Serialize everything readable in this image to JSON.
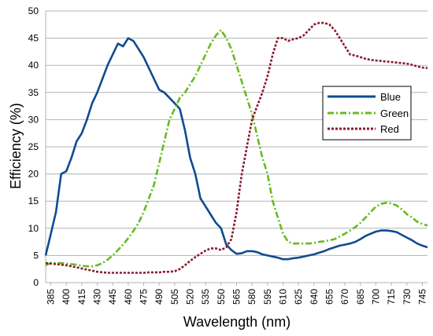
{
  "chart_data": {
    "type": "line",
    "title": "",
    "xlabel": "Wavelength (nm)",
    "ylabel": "Efficiency (%)",
    "xlim": [
      380,
      750
    ],
    "ylim": [
      0,
      50
    ],
    "x_ticks": [
      "385",
      "400",
      "415",
      "430",
      "445",
      "460",
      "475",
      "490",
      "505",
      "520",
      "535",
      "550",
      "565",
      "580",
      "595",
      "610",
      "625",
      "640",
      "655",
      "670",
      "685",
      "700",
      "715",
      "730",
      "745"
    ],
    "y_ticks": [
      "0",
      "5",
      "10",
      "15",
      "20",
      "25",
      "30",
      "35",
      "40",
      "45",
      "50"
    ],
    "grid": "horizontal",
    "legend_position": "right",
    "series": [
      {
        "name": "Blue",
        "color": "#0f4c8f",
        "style": "solid",
        "points": [
          [
            380,
            5
          ],
          [
            385,
            9
          ],
          [
            390,
            13
          ],
          [
            395,
            20
          ],
          [
            400,
            20.5
          ],
          [
            405,
            23
          ],
          [
            410,
            26
          ],
          [
            415,
            27.5
          ],
          [
            420,
            30
          ],
          [
            425,
            33
          ],
          [
            430,
            35
          ],
          [
            435,
            37.5
          ],
          [
            440,
            40
          ],
          [
            445,
            42
          ],
          [
            450,
            44
          ],
          [
            455,
            43.5
          ],
          [
            460,
            45
          ],
          [
            465,
            44.5
          ],
          [
            470,
            43
          ],
          [
            475,
            41.5
          ],
          [
            480,
            39.5
          ],
          [
            485,
            37.5
          ],
          [
            490,
            35.5
          ],
          [
            495,
            35
          ],
          [
            500,
            34
          ],
          [
            505,
            33
          ],
          [
            510,
            32
          ],
          [
            515,
            28
          ],
          [
            520,
            23
          ],
          [
            525,
            20
          ],
          [
            530,
            15.5
          ],
          [
            535,
            14
          ],
          [
            540,
            12.5
          ],
          [
            545,
            11
          ],
          [
            550,
            10
          ],
          [
            555,
            7
          ],
          [
            560,
            6
          ],
          [
            565,
            5.3
          ],
          [
            570,
            5.4
          ],
          [
            575,
            5.8
          ],
          [
            580,
            5.8
          ],
          [
            585,
            5.6
          ],
          [
            590,
            5.2
          ],
          [
            595,
            5
          ],
          [
            600,
            4.8
          ],
          [
            605,
            4.6
          ],
          [
            610,
            4.3
          ],
          [
            615,
            4.3
          ],
          [
            620,
            4.5
          ],
          [
            625,
            4.6
          ],
          [
            630,
            4.8
          ],
          [
            635,
            5
          ],
          [
            640,
            5.2
          ],
          [
            645,
            5.5
          ],
          [
            650,
            5.8
          ],
          [
            655,
            6.2
          ],
          [
            660,
            6.5
          ],
          [
            665,
            6.8
          ],
          [
            670,
            7
          ],
          [
            675,
            7.2
          ],
          [
            680,
            7.5
          ],
          [
            685,
            8
          ],
          [
            690,
            8.6
          ],
          [
            695,
            9
          ],
          [
            700,
            9.4
          ],
          [
            705,
            9.6
          ],
          [
            710,
            9.6
          ],
          [
            715,
            9.5
          ],
          [
            720,
            9.3
          ],
          [
            725,
            8.8
          ],
          [
            730,
            8.3
          ],
          [
            735,
            7.8
          ],
          [
            740,
            7.2
          ],
          [
            745,
            6.8
          ],
          [
            750,
            6.5
          ]
        ]
      },
      {
        "name": "Green",
        "color": "#66bb22",
        "style": "dashdot",
        "points": [
          [
            380,
            3.2
          ],
          [
            385,
            3.6
          ],
          [
            390,
            3.6
          ],
          [
            395,
            3.6
          ],
          [
            400,
            3.5
          ],
          [
            405,
            3.4
          ],
          [
            410,
            3.3
          ],
          [
            415,
            3.1
          ],
          [
            420,
            3
          ],
          [
            425,
            3
          ],
          [
            430,
            3.2
          ],
          [
            435,
            3.6
          ],
          [
            440,
            4.2
          ],
          [
            445,
            5
          ],
          [
            450,
            6
          ],
          [
            455,
            7
          ],
          [
            460,
            8.2
          ],
          [
            465,
            9.5
          ],
          [
            470,
            11
          ],
          [
            475,
            13
          ],
          [
            480,
            15.5
          ],
          [
            485,
            18
          ],
          [
            490,
            22
          ],
          [
            495,
            26
          ],
          [
            500,
            30
          ],
          [
            505,
            32
          ],
          [
            510,
            34
          ],
          [
            515,
            35
          ],
          [
            520,
            36.5
          ],
          [
            525,
            38
          ],
          [
            530,
            40
          ],
          [
            535,
            42
          ],
          [
            540,
            44
          ],
          [
            545,
            45.5
          ],
          [
            550,
            46.5
          ],
          [
            555,
            45
          ],
          [
            560,
            43
          ],
          [
            565,
            40
          ],
          [
            570,
            37
          ],
          [
            575,
            34
          ],
          [
            580,
            31
          ],
          [
            585,
            27
          ],
          [
            590,
            23
          ],
          [
            595,
            20
          ],
          [
            600,
            15
          ],
          [
            605,
            12
          ],
          [
            610,
            9
          ],
          [
            615,
            7.5
          ],
          [
            620,
            7.2
          ],
          [
            625,
            7.2
          ],
          [
            630,
            7.2
          ],
          [
            635,
            7.2
          ],
          [
            640,
            7.3
          ],
          [
            645,
            7.5
          ],
          [
            650,
            7.6
          ],
          [
            655,
            7.8
          ],
          [
            660,
            8
          ],
          [
            665,
            8.5
          ],
          [
            670,
            9
          ],
          [
            675,
            9.6
          ],
          [
            680,
            10.2
          ],
          [
            685,
            11
          ],
          [
            690,
            12
          ],
          [
            695,
            13
          ],
          [
            700,
            14
          ],
          [
            705,
            14.5
          ],
          [
            710,
            14.7
          ],
          [
            715,
            14.6
          ],
          [
            720,
            14.2
          ],
          [
            725,
            13.5
          ],
          [
            730,
            12.6
          ],
          [
            735,
            12
          ],
          [
            740,
            11.2
          ],
          [
            745,
            10.8
          ],
          [
            750,
            10.5
          ]
        ]
      },
      {
        "name": "Red",
        "color": "#8b1a2e",
        "style": "dotted",
        "points": [
          [
            380,
            3.6
          ],
          [
            385,
            3.5
          ],
          [
            390,
            3.4
          ],
          [
            395,
            3.3
          ],
          [
            400,
            3.2
          ],
          [
            405,
            3
          ],
          [
            410,
            2.8
          ],
          [
            415,
            2.6
          ],
          [
            420,
            2.4
          ],
          [
            425,
            2.2
          ],
          [
            430,
            2
          ],
          [
            435,
            1.9
          ],
          [
            440,
            1.8
          ],
          [
            445,
            1.8
          ],
          [
            450,
            1.8
          ],
          [
            455,
            1.8
          ],
          [
            460,
            1.8
          ],
          [
            465,
            1.8
          ],
          [
            470,
            1.8
          ],
          [
            475,
            1.8
          ],
          [
            480,
            1.9
          ],
          [
            485,
            1.9
          ],
          [
            490,
            1.9
          ],
          [
            495,
            2
          ],
          [
            500,
            2
          ],
          [
            505,
            2.1
          ],
          [
            510,
            2.5
          ],
          [
            515,
            3.2
          ],
          [
            520,
            4
          ],
          [
            525,
            4.7
          ],
          [
            530,
            5.3
          ],
          [
            535,
            5.9
          ],
          [
            540,
            6.3
          ],
          [
            545,
            6.3
          ],
          [
            550,
            6
          ],
          [
            555,
            6.5
          ],
          [
            560,
            8
          ],
          [
            565,
            13
          ],
          [
            570,
            20
          ],
          [
            575,
            25
          ],
          [
            580,
            30
          ],
          [
            585,
            32.5
          ],
          [
            590,
            35
          ],
          [
            595,
            38
          ],
          [
            600,
            42
          ],
          [
            605,
            45
          ],
          [
            610,
            45
          ],
          [
            615,
            44.5
          ],
          [
            620,
            44.8
          ],
          [
            625,
            45
          ],
          [
            630,
            45.5
          ],
          [
            635,
            46.5
          ],
          [
            640,
            47.5
          ],
          [
            645,
            47.8
          ],
          [
            650,
            47.8
          ],
          [
            655,
            47.5
          ],
          [
            660,
            46.5
          ],
          [
            665,
            45
          ],
          [
            670,
            43.5
          ],
          [
            675,
            42
          ],
          [
            680,
            41.8
          ],
          [
            685,
            41.5
          ],
          [
            690,
            41.2
          ],
          [
            695,
            41
          ],
          [
            700,
            40.9
          ],
          [
            705,
            40.8
          ],
          [
            710,
            40.7
          ],
          [
            715,
            40.6
          ],
          [
            720,
            40.5
          ],
          [
            725,
            40.4
          ],
          [
            730,
            40.3
          ],
          [
            735,
            40.1
          ],
          [
            740,
            39.8
          ],
          [
            745,
            39.6
          ],
          [
            750,
            39.5
          ]
        ]
      }
    ]
  }
}
